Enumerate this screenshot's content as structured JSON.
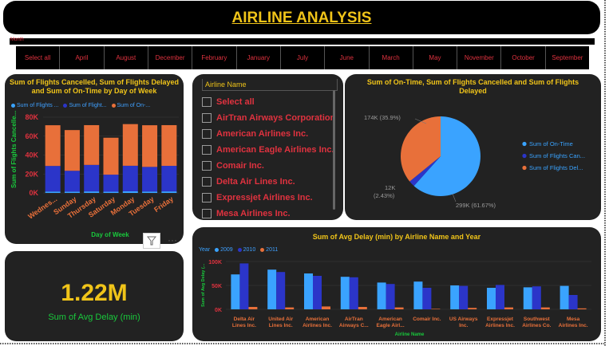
{
  "title": "AIRLINE ANALYSIS",
  "month_slicer": {
    "label": "Month",
    "items": [
      "Select all",
      "April",
      "August",
      "December",
      "February",
      "January",
      "July",
      "June",
      "March",
      "May",
      "November",
      "October",
      "September"
    ]
  },
  "airline_slicer": {
    "header": "Airline Name",
    "items": [
      "Select all",
      "AirTran Airways Corporation",
      "American Airlines Inc.",
      "American Eagle Airlines Inc.",
      "Comair Inc.",
      "Delta Air Lines Inc.",
      "Expressjet Airlines Inc.",
      "Mesa Airlines Inc."
    ]
  },
  "kpi": {
    "value": "1.22M",
    "label": "Sum of Avg Delay (min)"
  },
  "toolbar": {
    "filter_icon": "filter-icon",
    "more_icon": "more-options-icon",
    "more_label": "···"
  },
  "colors": {
    "ontime": "#3aa3ff",
    "cancelled": "#2b35c9",
    "delayed": "#e8703a",
    "title": "#f0c419",
    "axis_label": "#19c93c",
    "tick": "#e0323f"
  },
  "chart_data": [
    {
      "type": "bar",
      "title": "Sum of Flights Cancelled, Sum of Flights Delayed and Sum of On-Time by Day of Week",
      "xlabel": "Day of Week",
      "ylabel": "Sum of Flights Cancelle...",
      "legend": [
        "Sum of Flights ...",
        "Sum of Flight...",
        "Sum of On-..."
      ],
      "categories": [
        "Wednes...",
        "Sunday",
        "Thursday",
        "Saturday",
        "Monday",
        "Tuesday",
        "Friday"
      ],
      "y_ticks": [
        "0K",
        "20K",
        "40K",
        "60K",
        "80K"
      ],
      "ylim": [
        0,
        80000
      ],
      "stacked": true,
      "series": [
        {
          "name": "Sum of Flights Cancelled",
          "values": [
            1500,
            1400,
            1600,
            1300,
            1700,
            1500,
            1600
          ]
        },
        {
          "name": "Sum of Flights Delayed",
          "values": [
            27000,
            22000,
            28000,
            18000,
            27000,
            26000,
            27000
          ]
        },
        {
          "name": "Sum of On-Time",
          "values": [
            43000,
            43000,
            42000,
            39000,
            44000,
            44000,
            43000
          ]
        }
      ]
    },
    {
      "type": "pie",
      "title": "Sum of On-Time, Sum of Flights Cancelled and Sum of Flights Delayed",
      "legend": [
        "Sum of On-Time",
        "Sum of Flights Can...",
        "Sum of Flights Del..."
      ],
      "slices": [
        {
          "name": "Sum of On-Time",
          "value": 299000,
          "percent": 61.67,
          "label": "299K (61.67%)"
        },
        {
          "name": "Sum of Flights Cancelled",
          "value": 12000,
          "percent": 2.43,
          "label_a": "12K",
          "label_b": "(2.43%)"
        },
        {
          "name": "Sum of Flights Delayed",
          "value": 174000,
          "percent": 35.9,
          "label": "174K (35.9%)"
        }
      ]
    },
    {
      "type": "bar",
      "title": "Sum of Avg Delay (min) by Airline Name and Year",
      "xlabel": "Airline Name",
      "ylabel": "Sum of Avg Delay (...",
      "legend_title": "Year",
      "legend": [
        "2009",
        "2010",
        "2011"
      ],
      "y_ticks": [
        "0K",
        "50K",
        "100K"
      ],
      "ylim": [
        0,
        100000
      ],
      "categories": [
        [
          "Delta Air",
          "Lines Inc."
        ],
        [
          "United Air",
          "Lines Inc."
        ],
        [
          "American",
          "Airlines Inc."
        ],
        [
          "AirTran",
          "Airways C..."
        ],
        [
          "American",
          "Eagle Airl..."
        ],
        [
          "Comair Inc."
        ],
        [
          "US Airways",
          "Inc."
        ],
        [
          "Expressjet",
          "Airlines Inc."
        ],
        [
          "Southwest",
          "Airlines Co."
        ],
        [
          "Mesa",
          "Airlines Inc."
        ]
      ],
      "series": [
        {
          "name": "2009",
          "values": [
            73000,
            83000,
            75000,
            68000,
            56000,
            58000,
            50000,
            45000,
            46000,
            49000
          ]
        },
        {
          "name": "2010",
          "values": [
            96000,
            78000,
            70000,
            67000,
            53000,
            45000,
            49000,
            51000,
            48000,
            30000
          ]
        },
        {
          "name": "2011",
          "values": [
            5000,
            4000,
            6000,
            5000,
            4000,
            1000,
            3000,
            4000,
            4000,
            2000
          ]
        }
      ]
    }
  ]
}
